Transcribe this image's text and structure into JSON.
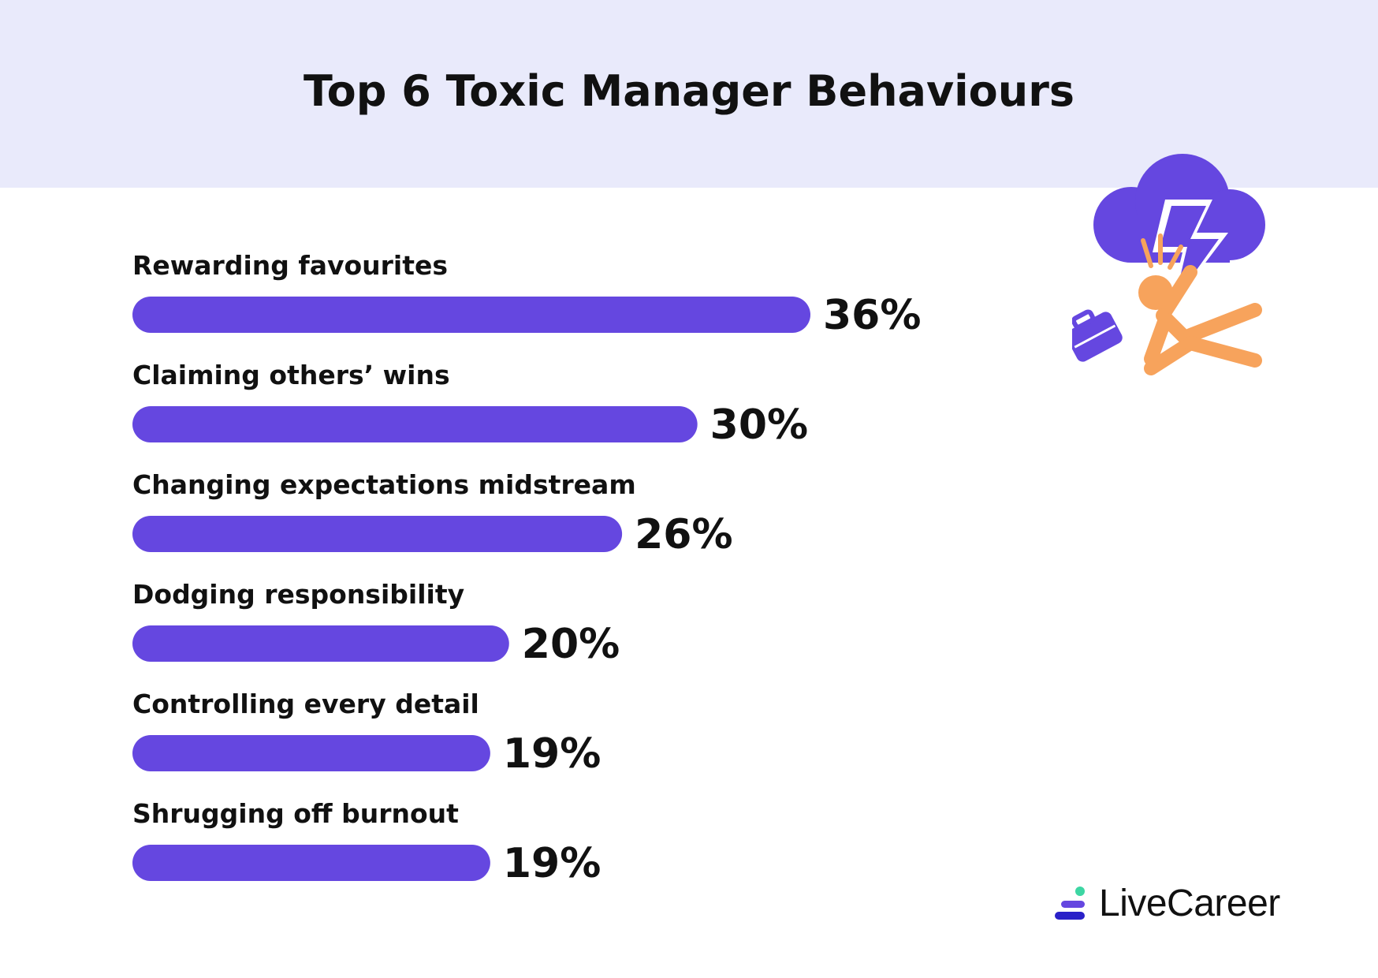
{
  "title": "Top 6 Toxic Manager Behaviours",
  "brand": {
    "name": "LiveCareer",
    "accent": "#6547e0",
    "logo_secondary": "#3dd6a3",
    "logo_dark": "#2a21c8"
  },
  "colors": {
    "bar": "#6547e0",
    "header_bg": "#e9eafb",
    "illustration_orange": "#f7a35c"
  },
  "illustration": {
    "icons": [
      "storm-cloud-icon",
      "lightning-bolt-icon",
      "falling-person-icon",
      "briefcase-icon"
    ]
  },
  "chart_data": {
    "type": "bar",
    "orientation": "horizontal",
    "categories": [
      "Rewarding favourites",
      "Claiming others’ wins",
      "Changing expectations midstream",
      "Dodging responsibility",
      "Controlling every detail",
      "Shrugging off burnout"
    ],
    "values": [
      36,
      30,
      26,
      20,
      19,
      19
    ],
    "value_labels": [
      "36%",
      "30%",
      "26%",
      "20%",
      "19%",
      "19%"
    ],
    "unit": "%",
    "xlim": [
      0,
      36
    ],
    "grid": false,
    "legend": "none"
  }
}
